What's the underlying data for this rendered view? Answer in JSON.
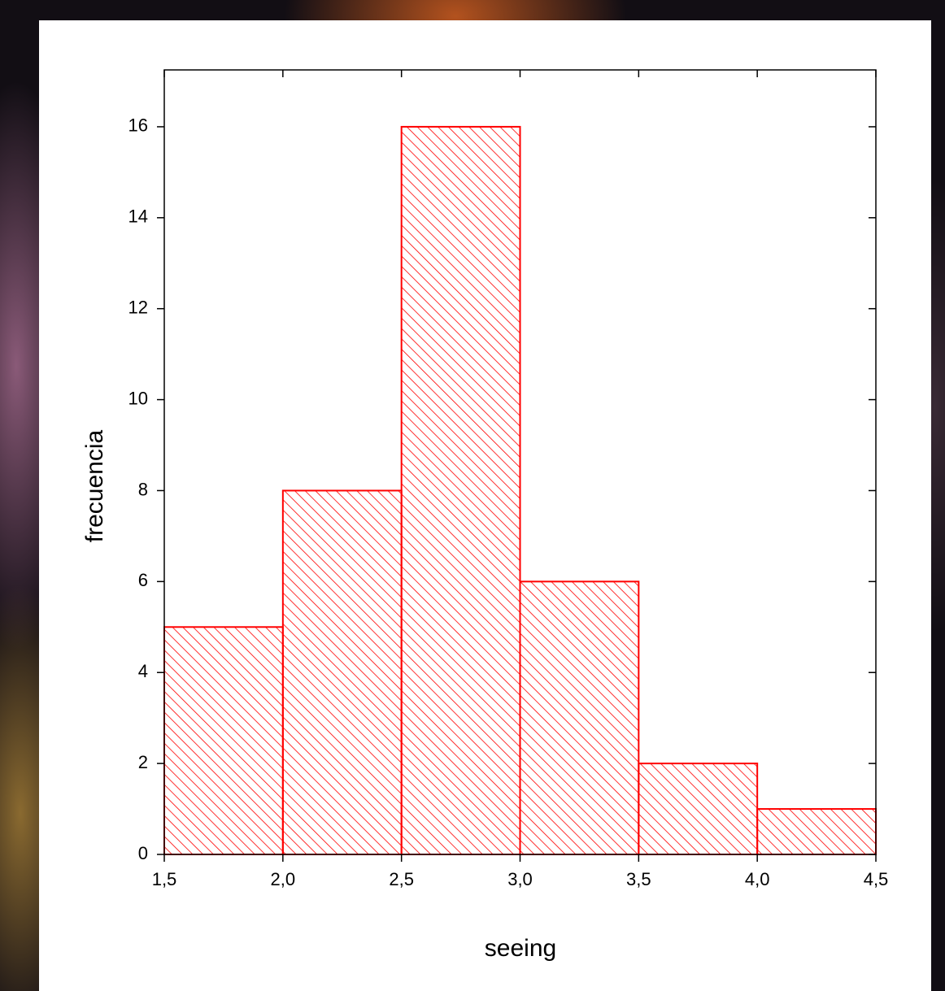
{
  "chart_data": {
    "type": "histogram",
    "x_label": "seeing",
    "y_label": "frecuencia",
    "bins": [
      1.5,
      2.0,
      2.5,
      3.0,
      3.5,
      4.0,
      4.5
    ],
    "values": [
      5,
      8,
      16,
      6,
      2,
      1
    ],
    "color": "#ff0000",
    "xlim": [
      1.5,
      4.5
    ],
    "xticks": [
      {
        "value": 1.5,
        "label": "1,5"
      },
      {
        "value": 2.0,
        "label": "2,0"
      },
      {
        "value": 2.5,
        "label": "2,5"
      },
      {
        "value": 3.0,
        "label": "3,0"
      },
      {
        "value": 3.5,
        "label": "3,5"
      },
      {
        "value": 4.0,
        "label": "4,0"
      },
      {
        "value": 4.5,
        "label": "4,5"
      }
    ],
    "ylim": [
      0,
      17.25
    ],
    "yticks": [
      0,
      2,
      4,
      6,
      8,
      10,
      12,
      14,
      16
    ]
  }
}
